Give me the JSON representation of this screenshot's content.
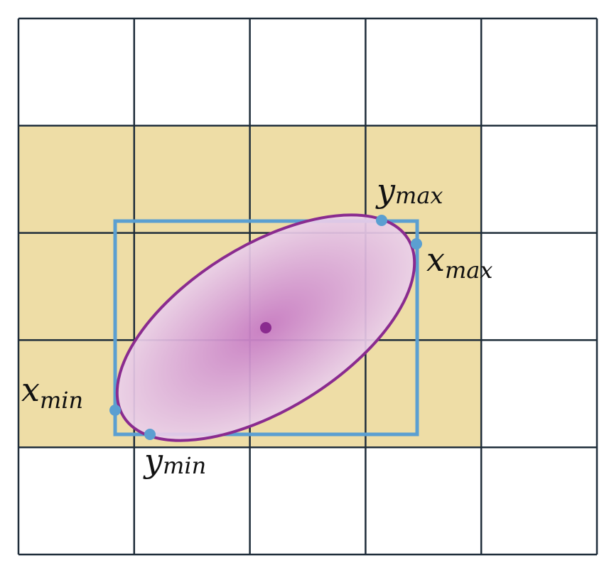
{
  "grid": {
    "columns": 5,
    "rows": 5,
    "line_color": "#1f2d3a",
    "highlight_color": "#eedda6",
    "highlighted_cells": [
      [
        1,
        0
      ],
      [
        1,
        1
      ],
      [
        1,
        2
      ],
      [
        1,
        3
      ],
      [
        2,
        0
      ],
      [
        2,
        1
      ],
      [
        2,
        2
      ],
      [
        2,
        3
      ],
      [
        3,
        0
      ],
      [
        3,
        1
      ],
      [
        3,
        2
      ],
      [
        3,
        3
      ]
    ]
  },
  "ellipse": {
    "fill_center": "#c77bc4",
    "fill_edge": "#ead0ea",
    "stroke": "#8a2b8f"
  },
  "bounding_box": {
    "color": "#5b9fd1"
  },
  "point_color": "#5b9fd1",
  "center_color": "#8a2b8f",
  "labels": {
    "y_max": {
      "main": "y",
      "sub": "max"
    },
    "x_max": {
      "main": "x",
      "sub": "max"
    },
    "x_min": {
      "main": "x",
      "sub": "min"
    },
    "y_min": {
      "main": "y",
      "sub": "min"
    }
  }
}
